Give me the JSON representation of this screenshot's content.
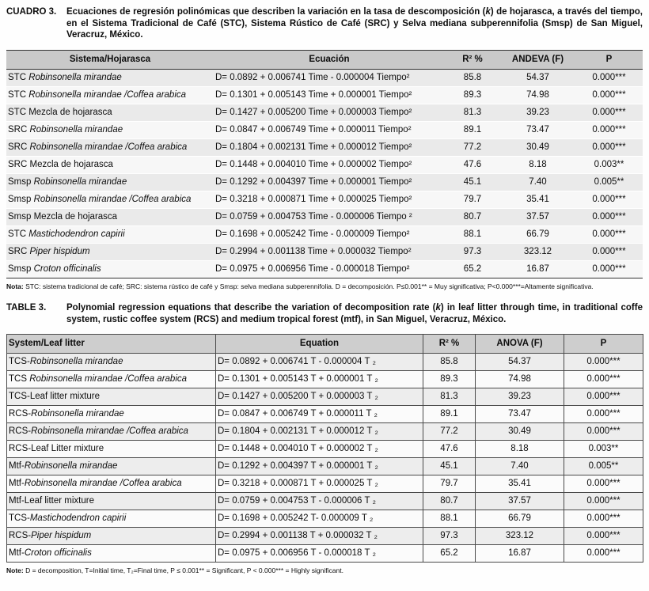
{
  "cuadro": {
    "label": "CUADRO 3.",
    "caption_pre": "Ecuaciones de regresión polinómicas que describen la variación en la tasa de descomposición (",
    "caption_k": "k",
    "caption_post": ") de hojarasca, a través del tiempo, en el Sistema Tradicional de Café (STC), Sistema Rústico de Café (SRC) y Selva mediana subperennifolia (Smsp) de San Miguel, Veracruz, México.",
    "headers": [
      "Sistema/Hojarasca",
      "Ecuación",
      "R² %",
      "ANDEVA (F)",
      "P"
    ],
    "rows": [
      {
        "sys": "STC ",
        "name": "Robinsonella mirandae",
        "italic": true,
        "eq": "D= 0.0892 + 0.006741 Time - 0.000004 Tiempo²",
        "r2": "85.8",
        "f": "54.37",
        "p": "0.000***"
      },
      {
        "sys": "STC ",
        "name": "Robinsonella mirandae /Coffea arabica",
        "italic": true,
        "eq": "D= 0.1301 + 0.005143 Time + 0.000001 Tiempo²",
        "r2": "89.3",
        "f": "74.98",
        "p": "0.000***"
      },
      {
        "sys": "STC ",
        "name": "Mezcla de hojarasca",
        "italic": false,
        "eq": "D= 0.1427 + 0.005200 Time + 0.000003 Tiempo²",
        "r2": "81.3",
        "f": "39.23",
        "p": "0.000***"
      },
      {
        "sys": "SRC ",
        "name": "Robinsonella mirandae",
        "italic": true,
        "eq": "D= 0.0847 + 0.006749 Time + 0.000011 Tiempo²",
        "r2": "89.1",
        "f": "73.47",
        "p": "0.000***"
      },
      {
        "sys": "SRC ",
        "name": "Robinsonella mirandae /Coffea arabica",
        "italic": true,
        "eq": "D= 0.1804 + 0.002131 Time + 0.000012 Tiempo²",
        "r2": "77.2",
        "f": "30.49",
        "p": "0.000***"
      },
      {
        "sys": "SRC ",
        "name": "Mezcla de hojarasca",
        "italic": false,
        "eq": "D= 0.1448 + 0.004010 Time + 0.000002 Tiempo²",
        "r2": "47.6",
        "f": "8.18",
        "p": "0.003**"
      },
      {
        "sys": "Smsp ",
        "name": "Robinsonella mirandae",
        "italic": true,
        "eq": "D= 0.1292 + 0.004397 Time + 0.000001 Tiempo²",
        "r2": "45.1",
        "f": "7.40",
        "p": "0.005**"
      },
      {
        "sys": "Smsp ",
        "name": "Robinsonella mirandae /Coffea arabica",
        "italic": true,
        "eq": "D= 0.3218 + 0.000871 Time + 0.000025 Tiempo²",
        "r2": "79.7",
        "f": "35.41",
        "p": "0.000***"
      },
      {
        "sys": "Smsp ",
        "name": "Mezcla de hojarasca",
        "italic": false,
        "eq": "D= 0.0759 + 0.004753 Time - 0.000006 Tiempo ²",
        "r2": "80.7",
        "f": "37.57",
        "p": "0.000***"
      },
      {
        "sys": "STC ",
        "name": "Mastichodendron capirii",
        "italic": true,
        "eq": "D= 0.1698 + 0.005242 Time - 0.000009 Tiempo²",
        "r2": "88.1",
        "f": "66.79",
        "p": "0.000***"
      },
      {
        "sys": "SRC ",
        "name": "Piper hispidum",
        "italic": true,
        "eq": "D= 0.2994 + 0.001138 Time + 0.000032 Tiempo²",
        "r2": "97.3",
        "f": "323.12",
        "p": "0.000***"
      },
      {
        "sys": "Smsp ",
        "name": "Croton officinalis",
        "italic": true,
        "eq": "D= 0.0975 + 0.006956 Time - 0.000018 Tiempo²",
        "r2": "65.2",
        "f": "16.87",
        "p": "0.000***"
      }
    ],
    "note_label": "Nota:",
    "note_text": " STC: sistema tradicional de café; SRC: sistema rústico de café y Smsp: selva mediana subperennifolia. D = decomposición. P≤0.001** = Muy significativa; P<0.000***=Altamente significativa."
  },
  "table": {
    "label": "TABLE 3.",
    "caption_pre": "Polynomial regression equations that describe the variation of decomposition rate (",
    "caption_k": "k",
    "caption_post": ") in leaf litter through time, in traditional coffe system, rustic coffee system (RCS) and medium tropical forest (mtf), in San Miguel, Veracruz, México.",
    "headers": [
      "System/Leaf litter",
      "Equation",
      "R² %",
      "ANOVA (F)",
      "P"
    ],
    "rows": [
      {
        "sys": "TCS-",
        "name": "Robinsonella mirandae",
        "italic": true,
        "eq": "D= 0.0892 + 0.006741 T - 0.000004 T ₂",
        "r2": "85.8",
        "f": "54.37",
        "p": "0.000***"
      },
      {
        "sys": "TCS ",
        "name": "Robinsonella mirandae /Coffea arabica",
        "italic": true,
        "eq": "D= 0.1301 + 0.005143 T + 0.000001 T ₂",
        "r2": "89.3",
        "f": "74.98",
        "p": "0.000***"
      },
      {
        "sys": "TCS-Leaf litter mixture",
        "name": "",
        "italic": false,
        "eq": "D= 0.1427 + 0.005200 T + 0.000003 T ₂",
        "r2": "81.3",
        "f": "39.23",
        "p": "0.000***"
      },
      {
        "sys": "RCS-",
        "name": "Robinsonella mirandae",
        "italic": true,
        "eq": "D= 0.0847 + 0.006749 T + 0.000011 T ₂",
        "r2": "89.1",
        "f": "73.47",
        "p": "0.000***"
      },
      {
        "sys": "RCS-",
        "name": "Robinsonella mirandae /Coffea arabica",
        "italic": true,
        "eq": "D= 0.1804 + 0.002131 T + 0.000012 T ₂",
        "r2": "77.2",
        "f": "30.49",
        "p": "0.000***"
      },
      {
        "sys": "RCS-Leaf Litter mixture",
        "name": "",
        "italic": false,
        "eq": "D= 0.1448 + 0.004010 T + 0.000002 T ₂",
        "r2": "47.6",
        "f": "8.18",
        "p": "0.003**"
      },
      {
        "sys": "Mtf-",
        "name": "Robinsonella mirandae",
        "italic": true,
        "eq": "D= 0.1292 + 0.004397 T + 0.000001 T ₂",
        "r2": "45.1",
        "f": "7.40",
        "p": "0.005**"
      },
      {
        "sys": "Mtf-",
        "name": "Robinsonella mirandae /Coffea arabica",
        "italic": true,
        "eq": "D= 0.3218 + 0.000871 T + 0.000025 T ₂",
        "r2": "79.7",
        "f": "35.41",
        "p": "0.000***"
      },
      {
        "sys": "Mtf-Leaf litter mixture",
        "name": "",
        "italic": false,
        "eq": "D= 0.0759 + 0.004753 T - 0.000006 T ₂",
        "r2": "80.7",
        "f": "37.57",
        "p": "0.000***"
      },
      {
        "sys": "TCS-",
        "name": "Mastichodendron capirii",
        "italic": true,
        "eq": "D= 0.1698 + 0.005242 T- 0.000009 T ₂",
        "r2": "88.1",
        "f": "66.79",
        "p": "0.000***"
      },
      {
        "sys": "RCS-",
        "name": "Piper hispidum",
        "italic": true,
        "eq": "D= 0.2994 + 0.001138 T + 0.000032 T ₂",
        "r2": "97.3",
        "f": "323.12",
        "p": "0.000***"
      },
      {
        "sys": "Mtf-",
        "name": "Croton officinalis",
        "italic": true,
        "eq": "D= 0.0975 + 0.006956 T - 0.000018 T ₂",
        "r2": "65.2",
        "f": "16.87",
        "p": "0.000***"
      }
    ],
    "note_label": "Note:",
    "note_text": " D = decomposition, T=Initial time, T₂=Final time, P ≤ 0.001** = Significant, P < 0.000*** = Highly significant."
  }
}
